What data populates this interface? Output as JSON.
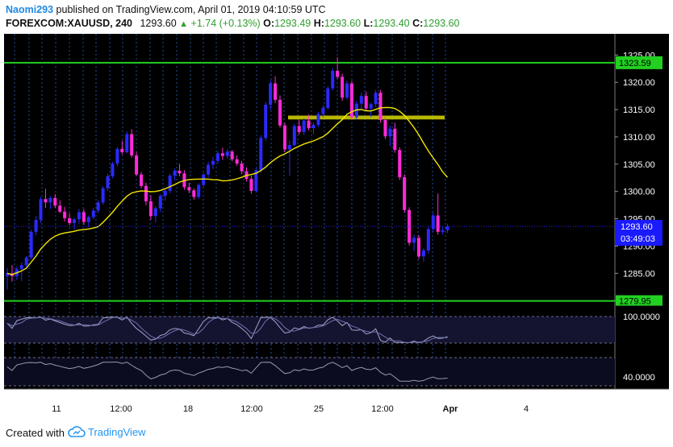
{
  "header": {
    "username": "Naomi293",
    "published_text": "published on TradingView.com, April 01, 2019 04:10:59 UTC",
    "symbol": "FOREXCOM:XAUUSD, 240",
    "last": "1293.60",
    "change": "+1.74 (+0.13%)",
    "o_label": "O:",
    "o_value": "1293.49",
    "h_label": "H:",
    "h_value": "1293.60",
    "l_label": "L:",
    "l_value": "1293.40",
    "c_label": "C:",
    "c_value": "1293.60"
  },
  "footer": {
    "created_with": "Created with",
    "brand": "TradingView"
  },
  "colors": {
    "background": "#000000",
    "bull": "#2a2aff",
    "bear": "#ff2bd8",
    "ma": "#f2e600",
    "level": "#22d022",
    "zone": "#b8b800",
    "session_line": "#1f4fa0",
    "osc": "#a3a3c8",
    "osc_band": "#141430"
  },
  "chart_data": {
    "type": "candlestick",
    "price_axis_ticks": [
      1325.0,
      1320.0,
      1315.0,
      1310.0,
      1305.0,
      1300.0,
      1295.0,
      1290.0,
      1285.0,
      1280.0
    ],
    "x_tick_labels": [
      "11",
      "12:00",
      "18",
      "12:00",
      "25",
      "12:00",
      "Apr",
      "4"
    ],
    "ylim": [
      1279,
      1328
    ],
    "levels": {
      "resistance": "1323.59",
      "support": "1279.95"
    },
    "zone": {
      "low": 1313.2,
      "high": 1313.9
    },
    "last_price": "1293.60",
    "countdown": "03:49:03",
    "osc1_label": "100.0000",
    "osc2_label": "40.0000",
    "candles": [
      [
        1284.5,
        1286.0,
        1282.0,
        1285.0
      ],
      [
        1285.0,
        1286.5,
        1283.5,
        1284.5
      ],
      [
        1284.5,
        1286.2,
        1283.8,
        1285.8
      ],
      [
        1285.8,
        1287.0,
        1283.6,
        1286.5
      ],
      [
        1286.5,
        1288.2,
        1285.8,
        1287.9
      ],
      [
        1287.9,
        1293.0,
        1287.5,
        1292.6
      ],
      [
        1292.6,
        1295.5,
        1292.0,
        1294.8
      ],
      [
        1294.8,
        1299.0,
        1294.2,
        1298.6
      ],
      [
        1298.6,
        1300.5,
        1297.0,
        1298.0
      ],
      [
        1298.0,
        1299.2,
        1296.8,
        1298.8
      ],
      [
        1298.8,
        1299.5,
        1297.0,
        1297.4
      ],
      [
        1297.4,
        1298.4,
        1296.0,
        1296.3
      ],
      [
        1296.3,
        1297.2,
        1294.5,
        1295.1
      ],
      [
        1295.1,
        1296.0,
        1293.8,
        1294.2
      ],
      [
        1294.2,
        1295.2,
        1293.0,
        1294.9
      ],
      [
        1294.9,
        1296.8,
        1294.0,
        1296.2
      ],
      [
        1296.2,
        1296.8,
        1293.9,
        1294.4
      ],
      [
        1294.4,
        1295.6,
        1293.5,
        1295.3
      ],
      [
        1295.3,
        1297.0,
        1294.9,
        1296.5
      ],
      [
        1296.5,
        1298.4,
        1296.0,
        1298.0
      ],
      [
        1298.0,
        1301.0,
        1297.6,
        1300.6
      ],
      [
        1300.6,
        1303.2,
        1300.1,
        1302.8
      ],
      [
        1302.8,
        1305.4,
        1302.4,
        1305.1
      ],
      [
        1305.1,
        1308.2,
        1304.6,
        1307.8
      ],
      [
        1307.8,
        1309.3,
        1306.8,
        1307.2
      ],
      [
        1307.2,
        1311.0,
        1307.0,
        1310.5
      ],
      [
        1310.5,
        1311.4,
        1306.2,
        1306.6
      ],
      [
        1306.6,
        1307.2,
        1302.8,
        1303.1
      ],
      [
        1303.1,
        1303.6,
        1300.6,
        1301.0
      ],
      [
        1301.0,
        1301.6,
        1297.5,
        1298.2
      ],
      [
        1298.2,
        1299.3,
        1294.8,
        1295.5
      ],
      [
        1295.5,
        1297.3,
        1294.3,
        1296.9
      ],
      [
        1296.9,
        1299.5,
        1296.2,
        1299.2
      ],
      [
        1299.2,
        1300.5,
        1298.3,
        1300.1
      ],
      [
        1300.1,
        1303.2,
        1299.7,
        1302.9
      ],
      [
        1302.9,
        1304.2,
        1302.0,
        1303.8
      ],
      [
        1303.8,
        1305.1,
        1302.8,
        1303.3
      ],
      [
        1303.3,
        1303.9,
        1300.3,
        1300.8
      ],
      [
        1300.8,
        1301.6,
        1299.7,
        1300.2
      ],
      [
        1300.2,
        1300.6,
        1298.5,
        1299.0
      ],
      [
        1299.0,
        1301.5,
        1298.6,
        1301.2
      ],
      [
        1301.2,
        1303.4,
        1300.8,
        1303.1
      ],
      [
        1303.1,
        1305.4,
        1302.5,
        1304.9
      ],
      [
        1304.9,
        1306.3,
        1304.1,
        1305.6
      ],
      [
        1305.6,
        1307.4,
        1305.1,
        1307.0
      ],
      [
        1307.0,
        1308.0,
        1305.8,
        1306.5
      ],
      [
        1306.5,
        1307.8,
        1306.0,
        1307.3
      ],
      [
        1307.3,
        1307.6,
        1305.5,
        1305.9
      ],
      [
        1305.9,
        1306.6,
        1304.7,
        1305.1
      ],
      [
        1305.1,
        1305.6,
        1303.2,
        1303.7
      ],
      [
        1303.7,
        1304.4,
        1301.8,
        1302.3
      ],
      [
        1302.3,
        1302.9,
        1299.6,
        1300.1
      ],
      [
        1300.1,
        1304.3,
        1299.8,
        1303.9
      ],
      [
        1303.9,
        1310.3,
        1303.5,
        1309.8
      ],
      [
        1309.8,
        1316.4,
        1309.3,
        1315.9
      ],
      [
        1315.9,
        1320.4,
        1314.9,
        1319.8
      ],
      [
        1319.8,
        1321.1,
        1316.2,
        1316.8
      ],
      [
        1316.8,
        1317.6,
        1311.7,
        1312.1
      ],
      [
        1312.1,
        1312.6,
        1307.2,
        1307.7
      ],
      [
        1307.7,
        1309.3,
        1302.9,
        1308.5
      ],
      [
        1308.5,
        1312.4,
        1308.2,
        1312.0
      ],
      [
        1312.0,
        1313.1,
        1310.4,
        1310.9
      ],
      [
        1310.9,
        1313.4,
        1310.3,
        1313.0
      ],
      [
        1313.0,
        1314.1,
        1311.2,
        1311.6
      ],
      [
        1311.6,
        1312.6,
        1310.5,
        1312.2
      ],
      [
        1312.2,
        1314.6,
        1311.8,
        1314.2
      ],
      [
        1314.2,
        1315.8,
        1313.6,
        1315.3
      ],
      [
        1315.3,
        1319.3,
        1315.0,
        1318.9
      ],
      [
        1318.9,
        1322.6,
        1318.5,
        1322.1
      ],
      [
        1322.1,
        1324.6,
        1320.6,
        1321.0
      ],
      [
        1321.0,
        1321.6,
        1316.6,
        1317.2
      ],
      [
        1317.2,
        1320.3,
        1316.8,
        1319.8
      ],
      [
        1319.8,
        1320.3,
        1313.1,
        1313.6
      ],
      [
        1313.6,
        1316.6,
        1313.2,
        1316.1
      ],
      [
        1316.1,
        1318.1,
        1315.1,
        1317.5
      ],
      [
        1317.5,
        1318.3,
        1314.7,
        1315.2
      ],
      [
        1315.2,
        1316.3,
        1313.6,
        1316.0
      ],
      [
        1316.0,
        1318.6,
        1315.5,
        1318.1
      ],
      [
        1318.1,
        1318.6,
        1312.6,
        1313.1
      ],
      [
        1313.1,
        1313.6,
        1309.6,
        1310.1
      ],
      [
        1310.1,
        1312.1,
        1308.3,
        1311.5
      ],
      [
        1311.5,
        1312.6,
        1307.1,
        1307.6
      ],
      [
        1307.6,
        1308.1,
        1302.1,
        1302.6
      ],
      [
        1302.6,
        1303.1,
        1296.1,
        1296.6
      ],
      [
        1296.6,
        1297.1,
        1290.1,
        1290.6
      ],
      [
        1290.6,
        1292.1,
        1289.1,
        1291.5
      ],
      [
        1291.5,
        1292.0,
        1287.6,
        1288.1
      ],
      [
        1288.1,
        1289.6,
        1287.1,
        1289.2
      ],
      [
        1289.2,
        1293.6,
        1288.6,
        1293.1
      ],
      [
        1293.1,
        1296.1,
        1292.6,
        1295.6
      ],
      [
        1295.6,
        1299.6,
        1292.1,
        1292.6
      ],
      [
        1292.6,
        1293.6,
        1292.1,
        1292.9
      ],
      [
        1292.9,
        1294.1,
        1292.4,
        1293.6
      ]
    ]
  }
}
